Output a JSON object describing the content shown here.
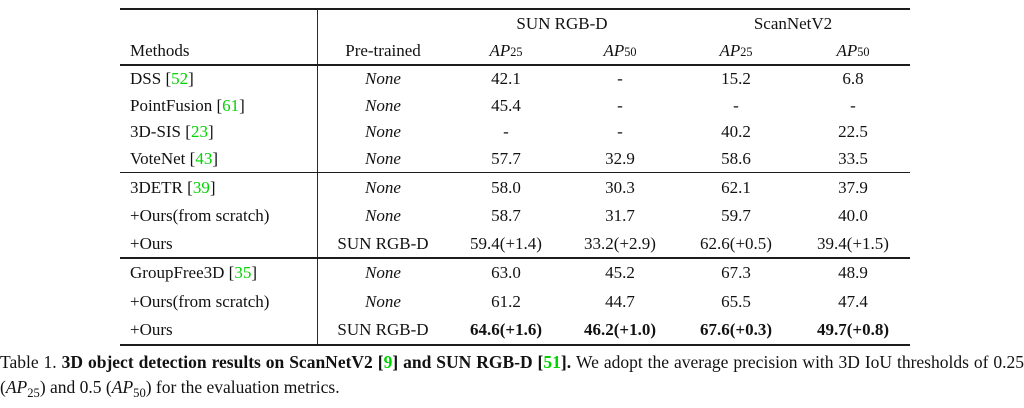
{
  "colors": {
    "citation": "#00d300",
    "text": "#121212",
    "rule": "#1c1c1c"
  },
  "table": {
    "groups": [
      {
        "label": "SUN RGB-D"
      },
      {
        "label": "ScanNetV2"
      }
    ],
    "headers": {
      "methods": "Methods",
      "pretrained": "Pre-trained"
    },
    "ap_headers": [
      {
        "base": "AP",
        "sub": "25"
      },
      {
        "base": "AP",
        "sub": "50"
      },
      {
        "base": "AP",
        "sub": "25"
      },
      {
        "base": "AP",
        "sub": "50"
      }
    ],
    "sections": [
      {
        "rows": [
          {
            "method": "DSS",
            "cite": "52",
            "pretrained": "None",
            "pretrained_italic": true,
            "bold": false,
            "values": [
              "42.1",
              "-",
              "15.2",
              "6.8"
            ]
          },
          {
            "method": "PointFusion",
            "cite": "61",
            "pretrained": "None",
            "pretrained_italic": true,
            "bold": false,
            "values": [
              "45.4",
              "-",
              "-",
              "-"
            ]
          },
          {
            "method": "3D-SIS",
            "cite": "23",
            "pretrained": "None",
            "pretrained_italic": true,
            "bold": false,
            "values": [
              "-",
              "-",
              "40.2",
              "22.5"
            ]
          },
          {
            "method": "VoteNet",
            "cite": "43",
            "pretrained": "None",
            "pretrained_italic": true,
            "bold": false,
            "values": [
              "57.7",
              "32.9",
              "58.6",
              "33.5"
            ]
          }
        ]
      },
      {
        "rows": [
          {
            "method": "3DETR",
            "cite": "39",
            "pretrained": "None",
            "pretrained_italic": true,
            "bold": false,
            "values": [
              "58.0",
              "30.3",
              "62.1",
              "37.9"
            ]
          },
          {
            "method": "+Ours(from scratch)",
            "cite": null,
            "pretrained": "None",
            "pretrained_italic": true,
            "bold": false,
            "values": [
              "58.7",
              "31.7",
              "59.7",
              "40.0"
            ]
          },
          {
            "method": "+Ours",
            "cite": null,
            "pretrained": "SUN RGB-D",
            "pretrained_italic": false,
            "bold": false,
            "values": [
              "59.4(+1.4)",
              "33.2(+2.9)",
              "62.6(+0.5)",
              "39.4(+1.5)"
            ]
          }
        ]
      },
      {
        "rows": [
          {
            "method": "GroupFree3D",
            "cite": "35",
            "pretrained": "None",
            "pretrained_italic": true,
            "bold": false,
            "values": [
              "63.0",
              "45.2",
              "67.3",
              "48.9"
            ]
          },
          {
            "method": "+Ours(from scratch)",
            "cite": null,
            "pretrained": "None",
            "pretrained_italic": true,
            "bold": false,
            "values": [
              "61.2",
              "44.7",
              "65.5",
              "47.4"
            ]
          },
          {
            "method": "+Ours",
            "cite": null,
            "pretrained": "SUN RGB-D",
            "pretrained_italic": false,
            "bold": true,
            "values": [
              "64.6(+1.6)",
              "46.2(+1.0)",
              "67.6(+0.3)",
              "49.7(+0.8)"
            ]
          }
        ]
      }
    ]
  },
  "caption": {
    "segments": [
      {
        "text": "Table 1. ",
        "style": "normal"
      },
      {
        "text": "3D object detection results on ScanNetV2 [",
        "style": "bold"
      },
      {
        "text": "9",
        "style": "bold-green"
      },
      {
        "text": "] and SUN RGB-D [",
        "style": "bold"
      },
      {
        "text": "51",
        "style": "bold-green"
      },
      {
        "text": "]. ",
        "style": "bold"
      },
      {
        "text": "We adopt the average precision with 3D IoU thresholds of 0.25 (",
        "style": "normal"
      },
      {
        "text": "AP",
        "style": "italic"
      },
      {
        "text": "25",
        "style": "sub"
      },
      {
        "text": ") and 0.5 (",
        "style": "normal"
      },
      {
        "text": "AP",
        "style": "italic"
      },
      {
        "text": "50",
        "style": "sub"
      },
      {
        "text": ") for the evaluation metrics.",
        "style": "normal"
      }
    ]
  }
}
